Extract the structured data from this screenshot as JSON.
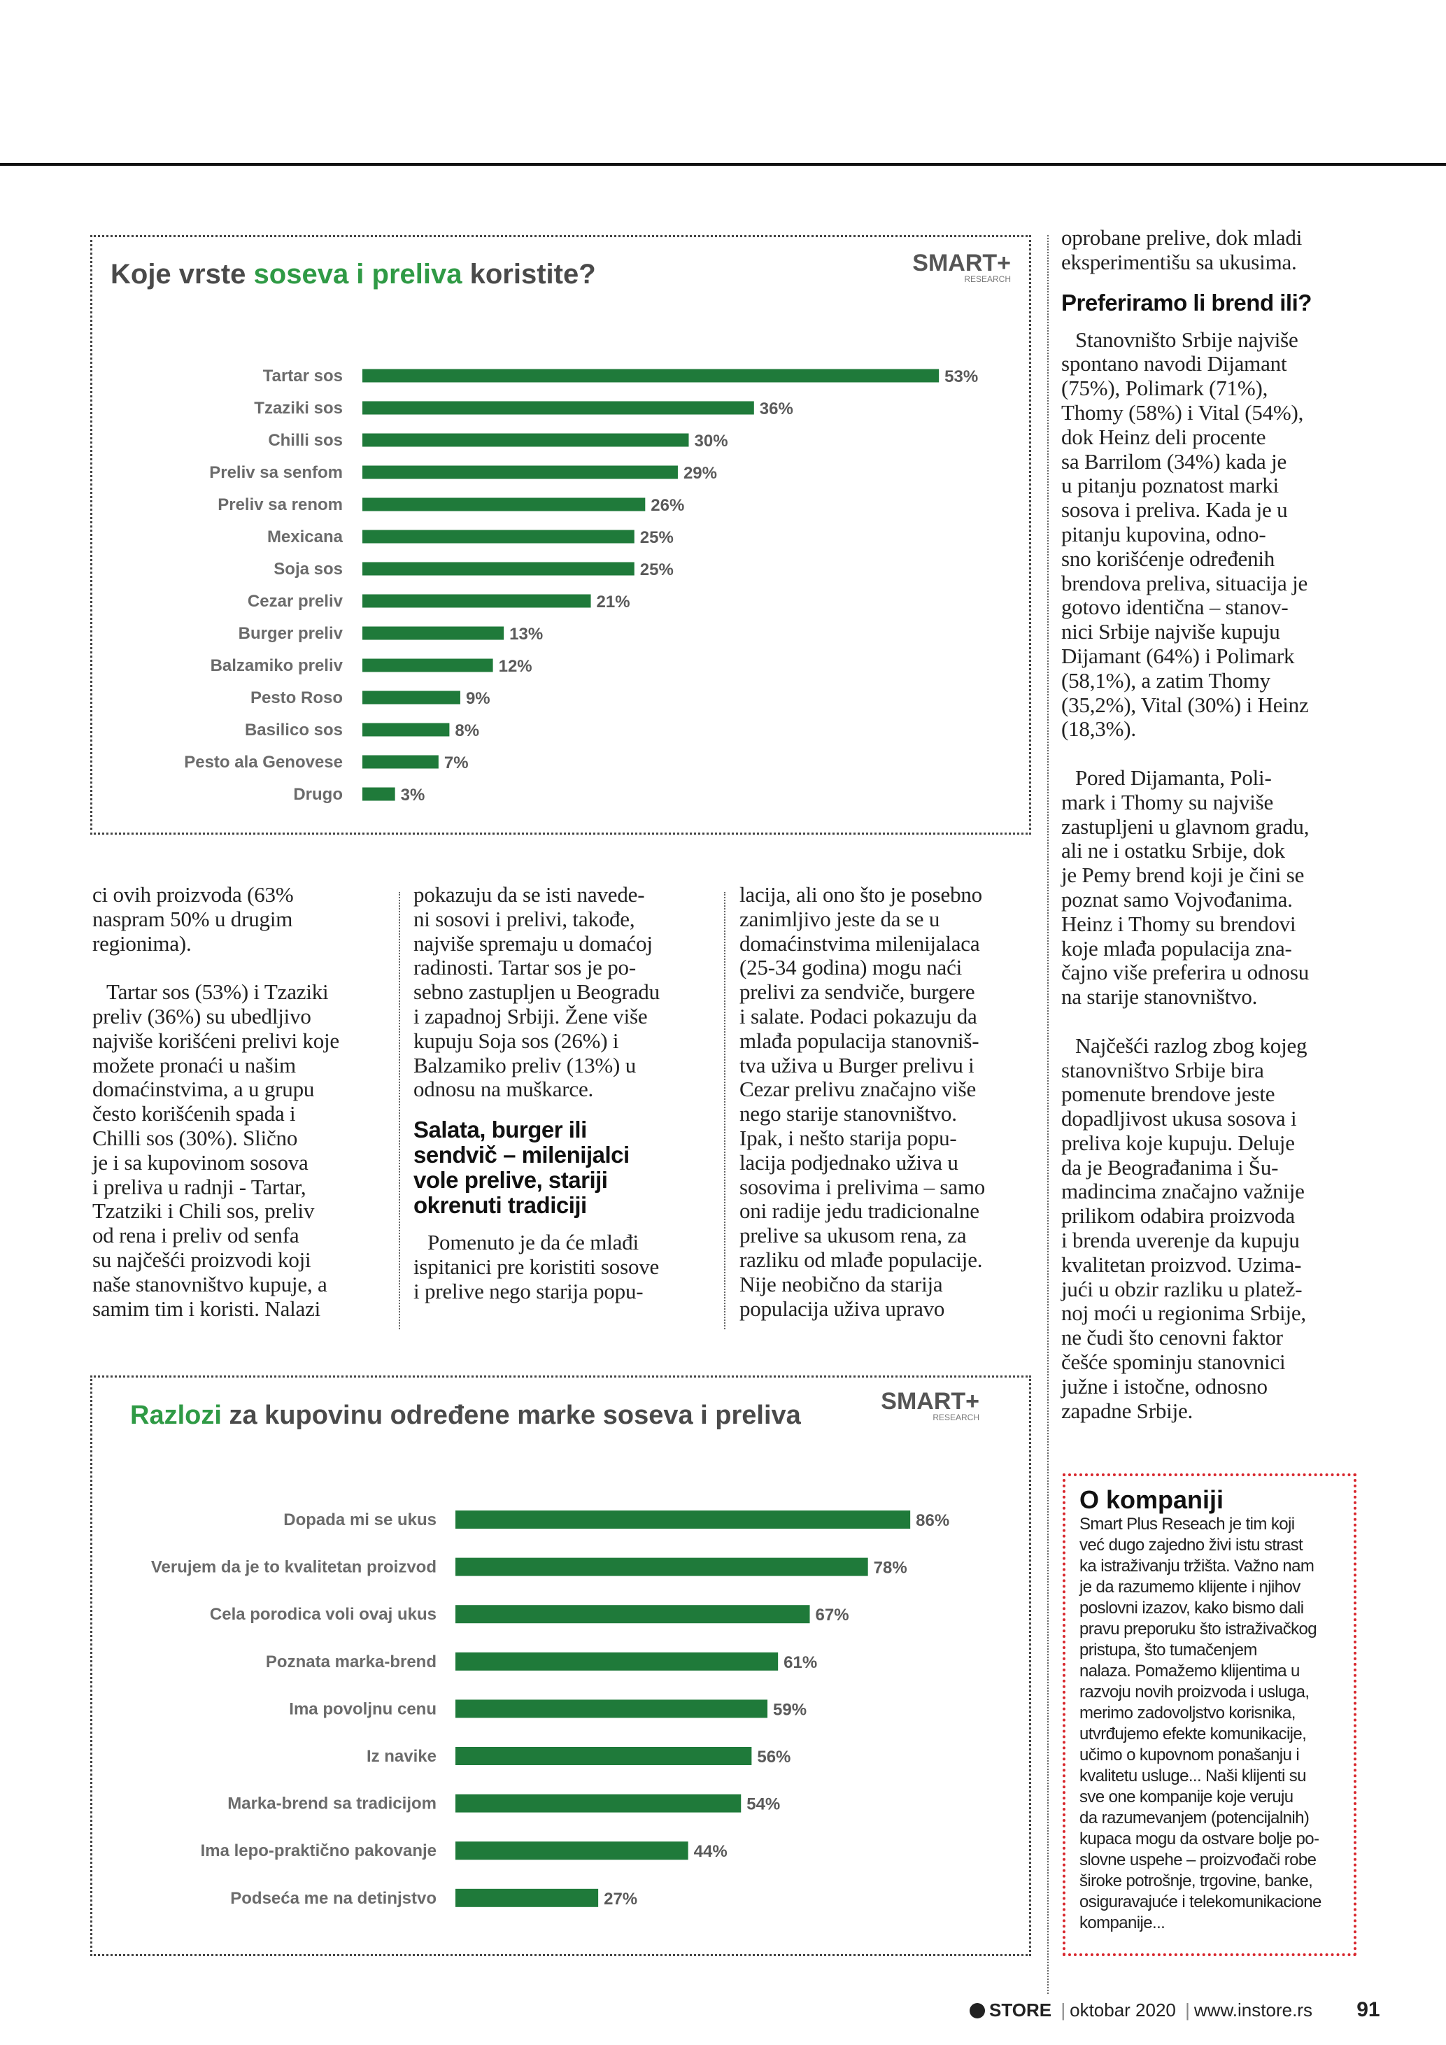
{
  "chart_data": [
    {
      "type": "bar",
      "title": [
        "Koje vrste ",
        "soseva i preliva",
        " koristite?"
      ],
      "logo": "SMART+",
      "logo_sub": "RESEARCH",
      "color": "#1f7a3a",
      "categories": [
        "Tartar sos",
        "Tzaziki sos",
        "Chilli sos",
        "Preliv sa senfom",
        "Preliv sa renom",
        "Mexicana",
        "Soja sos",
        "Cezar preliv",
        "Burger preliv",
        "Balzamiko preliv",
        "Pesto Roso",
        "Basilico sos",
        "Pesto ala Genovese",
        "Drugo"
      ],
      "values": [
        53,
        36,
        30,
        29,
        26,
        25,
        25,
        21,
        13,
        12,
        9,
        8,
        7,
        3
      ],
      "value_labels": [
        "53%",
        "36%",
        "30%",
        "29%",
        "26%",
        "25%",
        "25%",
        "21%",
        "13%",
        "12%",
        "9%",
        "8%",
        "7%",
        "3%"
      ]
    },
    {
      "type": "bar",
      "title": [
        "Razlozi",
        " za kupovinu određene marke soseva i preliva"
      ],
      "logo": "SMART+",
      "logo_sub": "RESEARCH",
      "color": "#1f7a3a",
      "categories": [
        "Dopada mi se ukus",
        "Verujem da je to kvalitetan proizvod",
        "Cela porodica voli ovaj ukus",
        "Poznata marka-brend",
        "Ima povoljnu cenu",
        "Iz navike",
        "Marka-brend sa tradicijom",
        "Ima lepo-praktično pakovanje",
        "Podseća me na detinjstvo"
      ],
      "values": [
        86,
        78,
        67,
        61,
        59,
        56,
        54,
        44,
        27
      ],
      "value_labels": [
        "86%",
        "78%",
        "67%",
        "61%",
        "59%",
        "56%",
        "54%",
        "44%",
        "27%"
      ]
    }
  ],
  "article": {
    "lower": [
      [
        {
          "type": "cont",
          "lines": [
            "ci ovih proizvoda  (63%",
            "naspram 50% u drugim",
            "regionima)."
          ]
        },
        {
          "type": "p",
          "lines": [
            "Tartar sos (53%) i Tzaziki",
            "preliv (36%) su ubedljivo",
            "najviše korišćeni prelivi koje",
            "možete pronaći u našim",
            "domaćinstvima, a u grupu",
            "često korišćenih spada i",
            "Chilli sos (30%). Slično",
            "je i sa kupovinom sosova",
            "i preliva u radnji - Tartar,",
            "Tzatziki i Chili sos, preliv",
            "od rena i preliv od senfa",
            "su najčešći proizvodi koji",
            "naše stanovništvo kupuje, a",
            "samim tim i koristi. Nalazi"
          ]
        }
      ],
      [
        {
          "type": "cont",
          "lines": [
            "pokazuju da se isti navede-",
            "ni sosovi i prelivi, takođe,",
            "najviše spremaju u domaćoj",
            "radinosti. Tartar sos je po-",
            "sebno zastupljen u Beogradu",
            "i zapadnoj Srbiji. Žene više",
            "kupuju Soja sos (26%) i",
            "Balzamiko preliv (13%) u",
            "odnosu na muškarce."
          ]
        },
        {
          "type": "h",
          "lines": [
            "Salata, burger ili",
            "sendvič – milenijalci",
            "vole prelive, stariji",
            "okrenuti tradiciji"
          ]
        },
        {
          "type": "p",
          "lines": [
            "Pomenuto je da će mlađi",
            "ispitanici pre koristiti sosove",
            "i prelive nego starija popu-"
          ]
        }
      ],
      [
        {
          "type": "cont",
          "lines": [
            "lacija, ali ono što je posebno",
            "zanimljivo jeste da se u",
            "domaćinstvima milenijalaca",
            "(25-34 godina) mogu naći",
            "prelivi za sendviče, burgere",
            "i salate. Podaci pokazuju da",
            "mlađa populacija stanovniš-",
            "tva uživa u Burger prelivu i",
            "Cezar prelivu značajno više",
            "nego starije stanovništvo.",
            "Ipak, i nešto starija popu-",
            "lacija podjednako uživa u",
            "sosovima i prelivima – samo",
            "oni radije jedu tradicionalne",
            "prelive sa ukusom rena, za",
            "razliku od mlađe populacije.",
            "Nije neobično da starija",
            "populacija uživa upravo"
          ]
        }
      ]
    ],
    "right": [
      {
        "type": "cont",
        "lines": [
          "oprobane prelive, dok mladi",
          "eksperimentišu sa ukusima."
        ]
      },
      {
        "type": "h",
        "lines": [
          "Preferiramo li brend ili?"
        ]
      },
      {
        "type": "p",
        "lines": [
          "Stanovništo Srbije najviše",
          "spontano navodi Dijamant",
          "(75%), Polimark (71%),",
          "Thomy (58%) i Vital (54%),",
          "dok Heinz deli procente",
          "sa Barrilom (34%) kada je",
          "u pitanju poznatost marki",
          "sosova i preliva. Kada je u",
          "pitanju kupovina, odno-",
          "sno korišćenje određenih",
          "brendova preliva, situacija je",
          "gotovo identična – stanov-",
          "nici Srbije najviše kupuju",
          "Dijamant (64%) i Polimark",
          "(58,1%), a zatim Thomy",
          "(35,2%), Vital (30%) i Heinz",
          "(18,3%)."
        ]
      },
      {
        "type": "p",
        "lines": [
          "Pored Dijamanta, Poli-",
          "mark i Thomy su  najviše",
          "zastupljeni u glavnom gradu,",
          "ali ne i ostatku Srbije, dok",
          "je Pemy brend koji je čini se",
          "poznat samo Vojvođanima.",
          "Heinz i Thomy su brendovi",
          "koje mlađa populacija zna-",
          "čajno više preferira u odnosu",
          "na starije stanovništvo."
        ]
      },
      {
        "type": "p",
        "lines": [
          "Najčešći razlog zbog kojeg",
          "stanovništvo Srbije bira",
          "pomenute brendove jeste",
          "dopadljivost ukusa sosova i",
          "preliva koje kupuju. Deluje",
          "da je Beograđanima i Šu-",
          "madincima značajno važnije",
          "prilikom odabira proizvoda",
          "i brenda uverenje da kupuju",
          "kvalitetan proizvod. Uzima-",
          "jući u obzir razliku u platež-",
          "noj moći u regionima Srbije,",
          "ne čudi što cenovni faktor",
          "češće spominju stanovnici",
          "južne i istočne, odnosno",
          "zapadne Srbije."
        ]
      }
    ]
  },
  "sidebar": {
    "title": "O kompaniji",
    "lines": [
      "Smart Plus Reseach je tim koji",
      "već dugo zajedno živi istu strast",
      "ka istraživanju tržišta. Važno nam",
      "je da razumemo klijente i njihov",
      "poslovni izazov, kako bismo dali",
      "pravu preporuku što istraživačkog",
      "pristupa, što tumačenjem",
      "nalaza. Pomažemo klijentima u",
      "razvoju novih proizvoda i usluga,",
      "merimo zadovoljstvo korisnika,",
      "utvrđujemo efekte komunikacije,",
      "učimo o kupovnom ponašanju i",
      "kvalitetu usluge... Naši klijenti su",
      "sve one kompanije koje veruju",
      "da razumevanjem (potencijalnih)",
      "kupaca mogu da ostvare bolje po-",
      "slovne uspehe – proizvođači robe",
      "široke potrošnje, trgovine, banke,",
      "osiguravajuće i telekomunikacione",
      "kompanije..."
    ]
  },
  "footer": {
    "brand": "STORE",
    "issue": "oktobar 2020",
    "url": "www.instore.rs",
    "page": "91"
  }
}
